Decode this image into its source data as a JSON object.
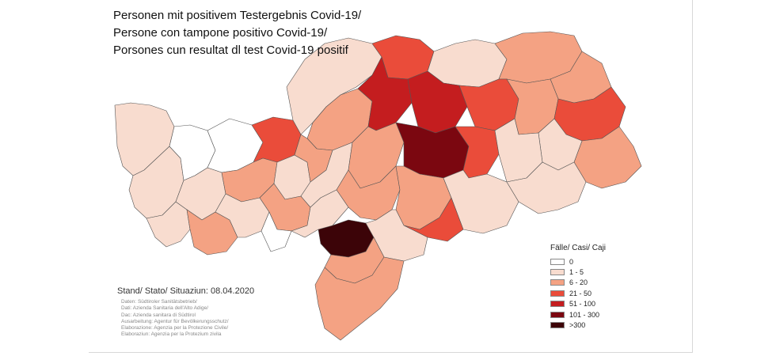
{
  "title": {
    "line1": "Personen mit  positivem Testergebnis Covid-19/",
    "line2": "Persone con tampone  positivo Covid-19/",
    "line3": "Porsones cun resultat dl test Covid-19 positif"
  },
  "stand": "Stand/ Stato/ Situaziun: 08.04.2020",
  "credits": [
    "Daten: Südtiroler Sanitätsbetrieb/",
    "Dati: Azienda Sanitaria dell'Alto Adige/",
    "Dac: Azienda sanitara di Südtirol",
    "Ausarbeitung: Agentur für Bevölkerungsschutz/",
    "Elaborazione: Agenzia per la Protezione Civile/",
    "Elaboraziun: Agenzia per la Protezium zivila"
  ],
  "legend": {
    "title": "Fälle/ Casi/ Caji",
    "classes": [
      {
        "label": "0",
        "color": "#ffffff"
      },
      {
        "label": "1 - 5",
        "color": "#f8dccf"
      },
      {
        "label": "6 - 20",
        "color": "#f4a283"
      },
      {
        "label": "21 - 50",
        "color": "#ea4c3a"
      },
      {
        "label": "51 - 100",
        "color": "#c41d1f"
      },
      {
        "label": "101 - 300",
        "color": "#7b0710"
      },
      {
        "label": ">300",
        "color": "#3c0408"
      }
    ]
  },
  "map": {
    "border_color": "#555555",
    "regions": [
      {
        "cls": 1
      },
      {
        "cls": 1
      },
      {
        "cls": 1
      },
      {
        "cls": 0
      },
      {
        "cls": 0
      },
      {
        "cls": 1
      },
      {
        "cls": 2
      },
      {
        "cls": 3
      },
      {
        "cls": 2
      },
      {
        "cls": 1
      },
      {
        "cls": 1
      },
      {
        "cls": 2
      },
      {
        "cls": 1
      },
      {
        "cls": 2
      },
      {
        "cls": 2
      },
      {
        "cls": 1
      },
      {
        "cls": 3
      },
      {
        "cls": 4
      },
      {
        "cls": 1
      },
      {
        "cls": 2
      },
      {
        "cls": 2
      },
      {
        "cls": 4
      },
      {
        "cls": 3
      },
      {
        "cls": 2
      },
      {
        "cls": 3
      },
      {
        "cls": 2
      },
      {
        "cls": 1
      },
      {
        "cls": 2
      },
      {
        "cls": 5
      },
      {
        "cls": 6
      },
      {
        "cls": 3
      },
      {
        "cls": 1
      },
      {
        "cls": 2
      },
      {
        "cls": 2
      },
      {
        "cls": 1
      },
      {
        "cls": 1
      },
      {
        "cls": 3
      },
      {
        "cls": 1
      },
      {
        "cls": 0
      },
      {
        "cls": 1
      },
      {
        "cls": 2
      },
      {
        "cls": 2
      }
    ]
  }
}
